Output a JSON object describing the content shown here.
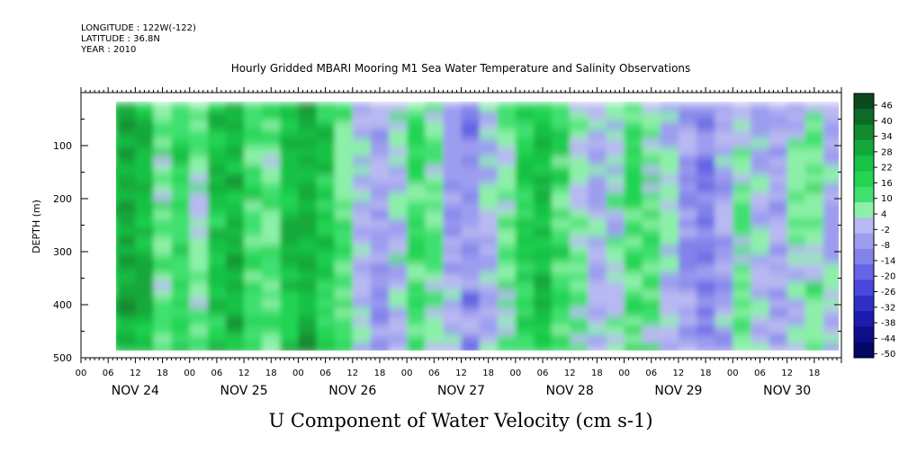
{
  "header": {
    "longitude": "LONGITUDE : 122W(-122)",
    "latitude": "LATITUDE : 36.8N",
    "year": "YEAR : 2010"
  },
  "chart_data": {
    "type": "heatmap",
    "title": "Hourly Gridded MBARI Mooring M1 Sea Water Temperature and Salinity Observations",
    "xlabel": "U Component of Water Velocity (cm s-1)",
    "ylabel": "DEPTH (m)",
    "y_axis": {
      "reversed": true,
      "range": [
        0,
        500
      ],
      "data_range": [
        20,
        490
      ],
      "ticks": [
        100,
        200,
        300,
        400,
        500
      ]
    },
    "x_axis": {
      "hour_ticks": [
        "00",
        "06",
        "12",
        "18"
      ],
      "days": [
        "NOV 24",
        "NOV 25",
        "NOV 26",
        "NOV 27",
        "NOV 28",
        "NOV 29",
        "NOV 30"
      ],
      "range_hours": [
        0,
        168
      ],
      "data_start_hour": 5
    },
    "colorbar": {
      "levels": [
        46,
        40,
        34,
        28,
        22,
        16,
        10,
        4,
        -2,
        -8,
        -14,
        -20,
        -26,
        -32,
        -38,
        -44,
        -50
      ],
      "labels": [
        "46",
        "40",
        "34",
        "28",
        "22",
        "16",
        "10",
        "4",
        "-2",
        "-8",
        "-14",
        "-20",
        "-26",
        "-32",
        "-38",
        "-44",
        "-50"
      ],
      "colors_high_to_low": [
        "#0a4a1e",
        "#0f6a28",
        "#128a30",
        "#14a83a",
        "#18c245",
        "#22d452",
        "#3fe070",
        "#8cf0a8",
        "#b8b8f2",
        "#9d9df0",
        "#8282ea",
        "#6464e4",
        "#4848dc",
        "#3030c8",
        "#1c1cac",
        "#0e0e88",
        "#060664"
      ]
    },
    "u_velocity_bands": [
      {
        "hour": 6,
        "value": 14
      },
      {
        "hour": 10,
        "value": 26
      },
      {
        "hour": 14,
        "value": 20
      },
      {
        "hour": 18,
        "value": 4
      },
      {
        "hour": 22,
        "value": 12
      },
      {
        "hour": 26,
        "value": 2
      },
      {
        "hour": 30,
        "value": 16
      },
      {
        "hour": 34,
        "value": 22
      },
      {
        "hour": 38,
        "value": 10
      },
      {
        "hour": 42,
        "value": 4
      },
      {
        "hour": 46,
        "value": 18
      },
      {
        "hour": 50,
        "value": 24
      },
      {
        "hour": 54,
        "value": 16
      },
      {
        "hour": 58,
        "value": 6
      },
      {
        "hour": 62,
        "value": -4
      },
      {
        "hour": 66,
        "value": -10
      },
      {
        "hour": 70,
        "value": -2
      },
      {
        "hour": 74,
        "value": 8
      },
      {
        "hour": 78,
        "value": 2
      },
      {
        "hour": 82,
        "value": -8
      },
      {
        "hour": 86,
        "value": -14
      },
      {
        "hour": 90,
        "value": -6
      },
      {
        "hour": 94,
        "value": 4
      },
      {
        "hour": 98,
        "value": 12
      },
      {
        "hour": 102,
        "value": 18
      },
      {
        "hour": 106,
        "value": 10
      },
      {
        "hour": 110,
        "value": 2
      },
      {
        "hour": 114,
        "value": -6
      },
      {
        "hour": 118,
        "value": -2
      },
      {
        "hour": 122,
        "value": 8
      },
      {
        "hour": 126,
        "value": 4
      },
      {
        "hour": 130,
        "value": -4
      },
      {
        "hour": 134,
        "value": -12
      },
      {
        "hour": 138,
        "value": -18
      },
      {
        "hour": 142,
        "value": -8
      },
      {
        "hour": 146,
        "value": 2
      },
      {
        "hour": 150,
        "value": -4
      },
      {
        "hour": 154,
        "value": -10
      },
      {
        "hour": 158,
        "value": -2
      },
      {
        "hour": 162,
        "value": 4
      },
      {
        "hour": 166,
        "value": -6
      }
    ]
  }
}
